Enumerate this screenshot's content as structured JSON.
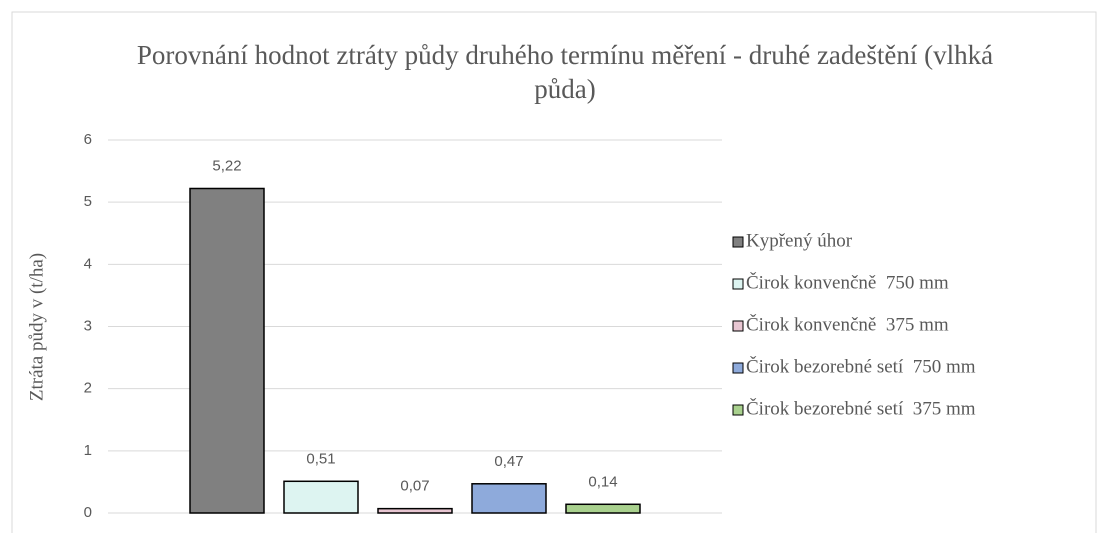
{
  "chart_data": {
    "type": "bar",
    "title": "Porovnání hodnot ztráty půdy druhého termínu měření - druhé zadeštění (vlhká půda)",
    "y_label": "Ztráta půdy v (t/ha)",
    "series": [
      {
        "name": "Kypřený úhor",
        "color": "#808080",
        "values": [
          5.22
        ],
        "value_labels": [
          "5,22"
        ]
      },
      {
        "name": "Čirok konvenčně  750 mm",
        "color": "#ddf4f1",
        "values": [
          0.51
        ],
        "value_labels": [
          "0,51"
        ]
      },
      {
        "name": "Čirok konvenčně  375 mm",
        "color": "#e8c6d2",
        "values": [
          0.07
        ],
        "value_labels": [
          "0,07"
        ]
      },
      {
        "name": "Čirok bezorebné setí  750 mm",
        "color": "#8eaadb",
        "values": [
          0.47
        ],
        "value_labels": [
          "0,47"
        ]
      },
      {
        "name": "Čirok bezorebné setí  375 mm",
        "color": "#a9d18e",
        "values": [
          0.14
        ],
        "value_labels": [
          "0,14"
        ]
      }
    ],
    "ylim": [
      0,
      6
    ],
    "yticks": [
      0,
      1,
      2,
      3,
      4,
      5,
      6
    ],
    "grid": true,
    "legend": "right"
  }
}
